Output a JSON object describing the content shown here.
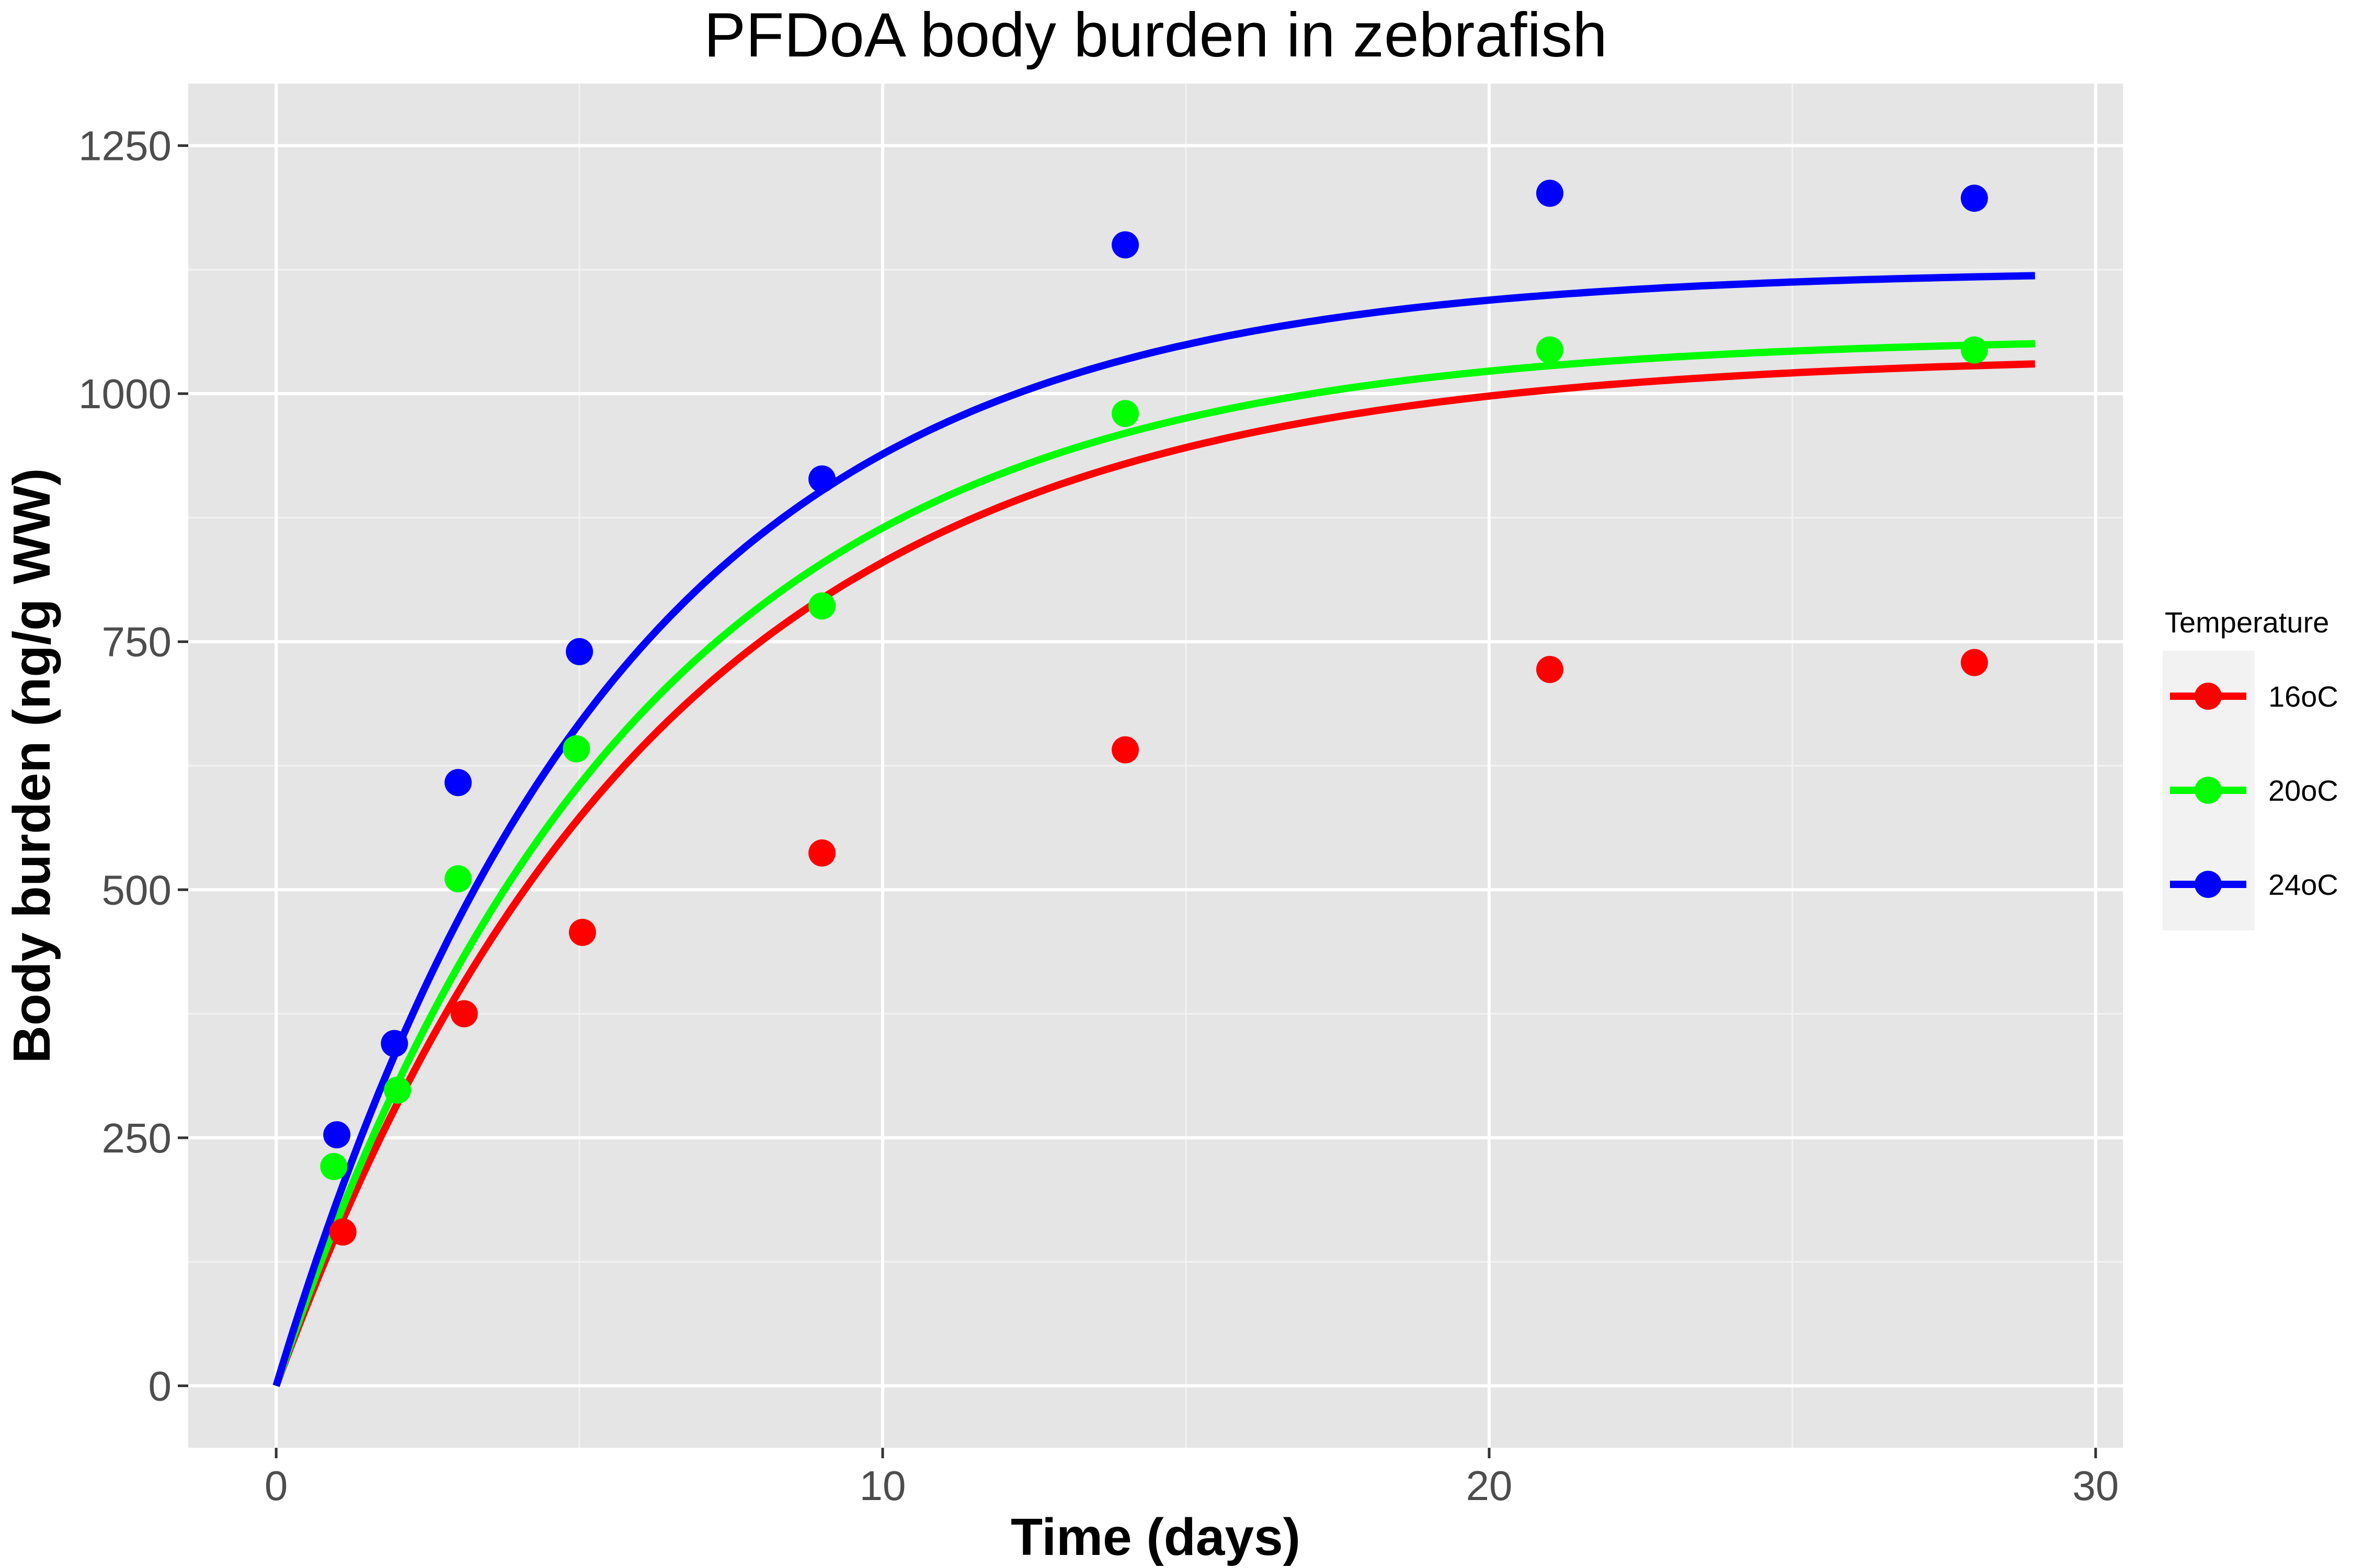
{
  "chart_data": {
    "type": "scatter",
    "title": "PFDoA body burden in zebrafish",
    "xlabel": "Time (days)",
    "ylabel": "Body burden (ng/g WW)",
    "xlim": [
      -1.45,
      30.45
    ],
    "ylim": [
      -62.5,
      1312.5
    ],
    "xticks": [
      0,
      10,
      20,
      30
    ],
    "yticks": [
      0,
      250,
      500,
      750,
      1000,
      1250
    ],
    "grid": true,
    "legend": {
      "title": "Temperature",
      "position": "right"
    },
    "series": [
      {
        "name": "16oC",
        "color": "#ff0000",
        "points": [
          {
            "x": 1.1,
            "y": 155
          },
          {
            "x": 3.1,
            "y": 375
          },
          {
            "x": 5.05,
            "y": 457
          },
          {
            "x": 9.0,
            "y": 537
          },
          {
            "x": 14.0,
            "y": 641
          },
          {
            "x": 21.0,
            "y": 722
          },
          {
            "x": 28.0,
            "y": 729
          }
        ],
        "fit": {
          "model": "first-order uptake",
          "plateau": 1040,
          "k": 0.16,
          "x_start": 0.1,
          "x_end": 29
        }
      },
      {
        "name": "20oC",
        "color": "#00ff00",
        "points": [
          {
            "x": 0.95,
            "y": 221
          },
          {
            "x": 2.0,
            "y": 298
          },
          {
            "x": 3.0,
            "y": 511
          },
          {
            "x": 4.95,
            "y": 642
          },
          {
            "x": 9.0,
            "y": 786
          },
          {
            "x": 14.0,
            "y": 980
          },
          {
            "x": 21.0,
            "y": 1044
          },
          {
            "x": 28.0,
            "y": 1044
          }
        ],
        "fit": {
          "model": "first-order uptake",
          "plateau": 1058,
          "k": 0.17,
          "x_start": 0.1,
          "x_end": 29
        }
      },
      {
        "name": "24oC",
        "color": "#0000ff",
        "points": [
          {
            "x": 1.0,
            "y": 253
          },
          {
            "x": 1.95,
            "y": 345
          },
          {
            "x": 3.0,
            "y": 608
          },
          {
            "x": 5.0,
            "y": 740
          },
          {
            "x": 9.0,
            "y": 914
          },
          {
            "x": 14.0,
            "y": 1150
          },
          {
            "x": 21.0,
            "y": 1202
          },
          {
            "x": 28.0,
            "y": 1197
          }
        ],
        "fit": {
          "model": "first-order uptake",
          "plateau": 1125,
          "k": 0.18,
          "x_start": 0.1,
          "x_end": 29
        }
      }
    ]
  }
}
